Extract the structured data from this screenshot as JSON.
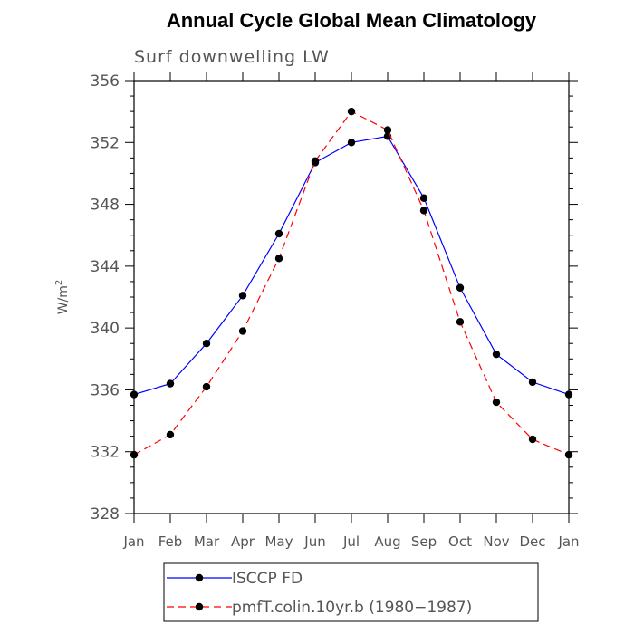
{
  "chart_data": {
    "type": "line",
    "title": "Annual Cycle Global Mean Climatology",
    "subtitle": "Surf downwelling LW",
    "xlabel": "",
    "ylabel_base": "W/m",
    "ylabel_sup": "2",
    "categories": [
      "Jan",
      "Feb",
      "Mar",
      "Apr",
      "May",
      "Jun",
      "Jul",
      "Aug",
      "Sep",
      "Oct",
      "Nov",
      "Dec",
      "Jan"
    ],
    "ylim": [
      328,
      356
    ],
    "yticks": [
      328,
      332,
      336,
      340,
      344,
      348,
      352,
      356
    ],
    "grid": false,
    "legend_position": "bottom",
    "series": [
      {
        "name": "ISCCP FD",
        "color": "#0000ff",
        "dash": "solid",
        "values": [
          335.7,
          336.4,
          339.0,
          342.1,
          346.1,
          350.7,
          352.0,
          352.4,
          348.4,
          342.6,
          338.3,
          336.5,
          335.7
        ]
      },
      {
        "name": "pmfT.colin.10yr.b (1980−1987)",
        "color": "#ff0000",
        "dash": "dashed",
        "values": [
          331.8,
          333.1,
          336.2,
          339.8,
          344.5,
          350.8,
          354.0,
          352.8,
          347.6,
          340.4,
          335.2,
          332.8,
          331.8
        ]
      }
    ]
  }
}
